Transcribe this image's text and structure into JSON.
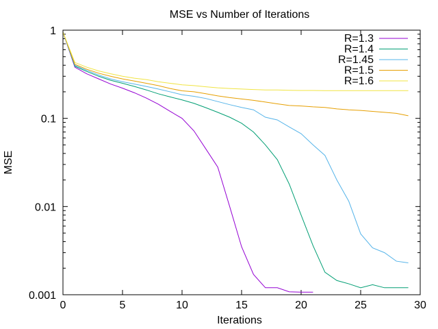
{
  "chart_data": {
    "type": "line",
    "title": "MSE vs Number of Iterations",
    "xlabel": "Iterations",
    "ylabel": "MSE",
    "xlim": [
      0,
      30
    ],
    "ylim": [
      0.001,
      1
    ],
    "yscale": "log",
    "grid": false,
    "legend_position": "top-right",
    "x_ticks": [
      0,
      5,
      10,
      15,
      20,
      25,
      30
    ],
    "x_tick_labels": [
      "0",
      "5",
      "10",
      "15",
      "20",
      "25",
      "30"
    ],
    "y_ticks": [
      0.001,
      0.01,
      0.1,
      1
    ],
    "y_tick_labels": [
      "0.001",
      "0.01",
      "0.1",
      "1"
    ],
    "series": [
      {
        "name": "R=1.3",
        "color": "#9400d3",
        "x": [
          0,
          1,
          2,
          3,
          4,
          5,
          6,
          7,
          8,
          9,
          10,
          11,
          12,
          13,
          14,
          15,
          16,
          17,
          18,
          19,
          20,
          21
        ],
        "y": [
          0.95,
          0.38,
          0.32,
          0.28,
          0.245,
          0.22,
          0.195,
          0.17,
          0.145,
          0.12,
          0.1,
          0.072,
          0.045,
          0.028,
          0.01,
          0.0035,
          0.0017,
          0.0012,
          0.0012,
          0.00108,
          0.00107,
          0.00107
        ]
      },
      {
        "name": "R=1.4",
        "color": "#009e73",
        "x": [
          0,
          1,
          2,
          3,
          4,
          5,
          6,
          7,
          8,
          9,
          10,
          11,
          12,
          13,
          14,
          15,
          16,
          17,
          18,
          19,
          20,
          21,
          22,
          23,
          24,
          25,
          26,
          27,
          28,
          29
        ],
        "y": [
          0.95,
          0.39,
          0.34,
          0.3,
          0.27,
          0.25,
          0.23,
          0.21,
          0.19,
          0.175,
          0.162,
          0.148,
          0.132,
          0.117,
          0.103,
          0.088,
          0.07,
          0.05,
          0.034,
          0.018,
          0.008,
          0.0036,
          0.0018,
          0.00145,
          0.00133,
          0.0012,
          0.0013,
          0.0012,
          0.0012,
          0.0012
        ]
      },
      {
        "name": "R=1.45",
        "color": "#56b4e9",
        "x": [
          0,
          1,
          2,
          3,
          4,
          5,
          6,
          7,
          8,
          9,
          10,
          11,
          12,
          13,
          14,
          15,
          16,
          17,
          18,
          19,
          20,
          21,
          22,
          23,
          24,
          25,
          26,
          27,
          28,
          29
        ],
        "y": [
          0.95,
          0.4,
          0.35,
          0.31,
          0.28,
          0.26,
          0.245,
          0.23,
          0.215,
          0.2,
          0.185,
          0.178,
          0.168,
          0.155,
          0.143,
          0.133,
          0.125,
          0.103,
          0.096,
          0.08,
          0.067,
          0.05,
          0.038,
          0.02,
          0.0115,
          0.0049,
          0.0034,
          0.003,
          0.0024,
          0.0023
        ]
      },
      {
        "name": "R=1.5",
        "color": "#e69f00",
        "x": [
          0,
          1,
          2,
          3,
          4,
          5,
          6,
          7,
          8,
          9,
          10,
          11,
          12,
          13,
          14,
          15,
          16,
          17,
          18,
          19,
          20,
          21,
          22,
          23,
          24,
          25,
          26,
          27,
          28,
          29
        ],
        "y": [
          0.95,
          0.41,
          0.36,
          0.325,
          0.3,
          0.28,
          0.265,
          0.25,
          0.235,
          0.218,
          0.205,
          0.2,
          0.19,
          0.18,
          0.172,
          0.166,
          0.16,
          0.153,
          0.146,
          0.14,
          0.138,
          0.135,
          0.133,
          0.128,
          0.125,
          0.123,
          0.12,
          0.117,
          0.114,
          0.107
        ]
      },
      {
        "name": "R=1.6",
        "color": "#f0e442",
        "x": [
          0,
          1,
          2,
          3,
          4,
          5,
          6,
          7,
          8,
          9,
          10,
          11,
          12,
          13,
          14,
          15,
          16,
          17,
          18,
          19,
          20,
          21,
          22,
          23,
          24,
          25,
          26,
          27,
          28,
          29
        ],
        "y": [
          0.95,
          0.43,
          0.38,
          0.345,
          0.32,
          0.3,
          0.285,
          0.275,
          0.26,
          0.25,
          0.24,
          0.235,
          0.228,
          0.222,
          0.218,
          0.215,
          0.212,
          0.21,
          0.21,
          0.208,
          0.207,
          0.207,
          0.206,
          0.206,
          0.206,
          0.206,
          0.206,
          0.206,
          0.206,
          0.206
        ]
      }
    ]
  }
}
